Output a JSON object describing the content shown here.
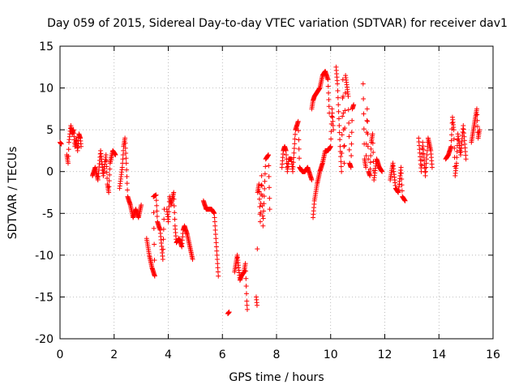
{
  "chart_data": {
    "type": "scatter",
    "title": "Day 059 of 2015, Sidereal Day-to-day VTEC variation (SDTVAR) for receiver dav1",
    "xlabel": "GPS time / hours",
    "ylabel": "SDTVAR / TECUs",
    "xlim": [
      0,
      16
    ],
    "ylim": [
      -20,
      15
    ],
    "xticks": [
      0,
      2,
      4,
      6,
      8,
      10,
      12,
      14,
      16
    ],
    "yticks": [
      -20,
      -15,
      -10,
      -5,
      0,
      5,
      10,
      15
    ],
    "grid": true,
    "marker": "+",
    "color": "#ff0000",
    "segments": [
      [
        [
          0.0,
          3.5
        ],
        [
          0.05,
          3.3
        ]
      ],
      [
        [
          0.25,
          2.0
        ],
        [
          0.3,
          1.0
        ],
        [
          0.33,
          3.5
        ],
        [
          0.4,
          5.5
        ],
        [
          0.45,
          4.5
        ],
        [
          0.5,
          5.0
        ],
        [
          0.55,
          3.0
        ],
        [
          0.6,
          4.0
        ],
        [
          0.65,
          2.5
        ],
        [
          0.7,
          4.5
        ],
        [
          0.75,
          4.0
        ],
        [
          0.78,
          3.0
        ]
      ],
      [
        [
          1.2,
          -0.5
        ],
        [
          1.3,
          0.5
        ],
        [
          1.4,
          -1.0
        ],
        [
          1.5,
          2.5
        ],
        [
          1.6,
          -0.5
        ],
        [
          1.7,
          2.0
        ],
        [
          1.75,
          -1.5
        ],
        [
          1.8,
          -2.5
        ],
        [
          1.85,
          1.0
        ],
        [
          1.95,
          2.5
        ],
        [
          2.05,
          2.0
        ]
      ],
      [
        [
          2.2,
          -2.0
        ],
        [
          2.3,
          0.5
        ],
        [
          2.35,
          3.0
        ],
        [
          2.4,
          4.0
        ],
        [
          2.45,
          1.0
        ],
        [
          2.5,
          -3.0
        ],
        [
          2.6,
          -4.0
        ],
        [
          2.7,
          -5.5
        ],
        [
          2.8,
          -4.5
        ],
        [
          2.9,
          -5.5
        ],
        [
          3.0,
          -4.0
        ]
      ],
      [
        [
          3.2,
          -8.0
        ],
        [
          3.3,
          -10.0
        ],
        [
          3.4,
          -11.5
        ],
        [
          3.5,
          -12.5
        ],
        [
          3.45,
          -3.0
        ],
        [
          3.55,
          -2.8
        ],
        [
          3.6,
          -6.0
        ],
        [
          3.7,
          -7.0
        ],
        [
          3.8,
          -10.5
        ],
        [
          3.85,
          -4.5
        ]
      ],
      [
        [
          3.95,
          -4.5
        ],
        [
          4.0,
          -6.0
        ],
        [
          4.05,
          -3.0
        ],
        [
          4.1,
          -4.0
        ],
        [
          4.2,
          -2.5
        ],
        [
          4.25,
          -6.5
        ],
        [
          4.3,
          -8.5
        ],
        [
          4.4,
          -8.0
        ],
        [
          4.5,
          -9.0
        ],
        [
          4.55,
          -7.0
        ],
        [
          4.6,
          -6.5
        ],
        [
          4.7,
          -7.5
        ],
        [
          4.8,
          -9.0
        ],
        [
          4.9,
          -10.5
        ]
      ],
      [
        [
          5.3,
          -3.5
        ],
        [
          5.4,
          -4.5
        ],
        [
          5.5,
          -4.5
        ],
        [
          5.6,
          -4.5
        ],
        [
          5.7,
          -5.0
        ],
        [
          5.75,
          -7.5
        ],
        [
          5.8,
          -10.0
        ],
        [
          5.85,
          -12.5
        ]
      ],
      [
        [
          6.2,
          -17.0
        ],
        [
          6.25,
          -16.8
        ]
      ],
      [
        [
          6.45,
          -12.0
        ],
        [
          6.5,
          -11.0
        ],
        [
          6.55,
          -10.0
        ],
        [
          6.6,
          -11.5
        ],
        [
          6.65,
          -13.0
        ],
        [
          6.7,
          -12.5
        ],
        [
          6.8,
          -12.0
        ],
        [
          6.85,
          -11.0
        ],
        [
          6.9,
          -15.5
        ],
        [
          6.92,
          -16.5
        ]
      ],
      [
        [
          7.25,
          -15.0
        ],
        [
          7.28,
          -16.0
        ],
        [
          7.3,
          -2.5
        ],
        [
          7.35,
          -1.5
        ],
        [
          7.4,
          -6.0
        ],
        [
          7.45,
          -0.5
        ],
        [
          7.5,
          -6.5
        ],
        [
          7.6,
          1.5
        ],
        [
          7.7,
          2.0
        ],
        [
          7.75,
          -4.5
        ]
      ],
      [
        [
          8.2,
          0.5
        ],
        [
          8.25,
          2.5
        ],
        [
          8.3,
          3.0
        ],
        [
          8.35,
          2.5
        ],
        [
          8.4,
          0.0
        ],
        [
          8.45,
          1.5
        ],
        [
          8.55,
          1.5
        ],
        [
          8.6,
          0.0
        ],
        [
          8.7,
          5.0
        ],
        [
          8.8,
          6.0
        ],
        [
          8.85,
          0.5
        ],
        [
          8.95,
          0.0
        ],
        [
          9.05,
          0.0
        ],
        [
          9.15,
          0.5
        ],
        [
          9.3,
          -1.0
        ]
      ],
      [
        [
          9.3,
          7.5
        ],
        [
          9.35,
          8.5
        ],
        [
          9.4,
          9.0
        ],
        [
          9.5,
          9.5
        ],
        [
          9.6,
          10.0
        ],
        [
          9.7,
          11.5
        ],
        [
          9.8,
          12.0
        ],
        [
          9.9,
          11.0
        ],
        [
          9.95,
          7.0
        ]
      ],
      [
        [
          9.35,
          -5.5
        ],
        [
          9.4,
          -3.5
        ],
        [
          9.5,
          -1.5
        ],
        [
          9.6,
          0.0
        ],
        [
          9.7,
          1.0
        ],
        [
          9.8,
          2.5
        ],
        [
          9.9,
          2.5
        ],
        [
          10.0,
          3.0
        ],
        [
          10.05,
          7.5
        ],
        [
          10.1,
          5.0
        ]
      ],
      [
        [
          10.2,
          12.5
        ],
        [
          10.25,
          10.5
        ],
        [
          10.35,
          3.0
        ],
        [
          10.4,
          0.0
        ],
        [
          10.45,
          11.0
        ],
        [
          10.5,
          1.0
        ],
        [
          10.55,
          11.5
        ],
        [
          10.65,
          9.0
        ],
        [
          10.7,
          1.0
        ],
        [
          10.75,
          0.5
        ],
        [
          10.8,
          7.5
        ],
        [
          10.85,
          8.0
        ]
      ],
      [
        [
          11.2,
          10.5
        ],
        [
          11.25,
          1.5
        ],
        [
          11.3,
          0.5
        ],
        [
          11.35,
          7.5
        ],
        [
          11.4,
          0.0
        ],
        [
          11.45,
          -0.5
        ],
        [
          11.5,
          3.5
        ],
        [
          11.55,
          4.5
        ],
        [
          11.6,
          -1.0
        ],
        [
          11.7,
          1.5
        ],
        [
          11.8,
          0.5
        ],
        [
          11.9,
          0.0
        ]
      ],
      [
        [
          12.2,
          -1.0
        ],
        [
          12.3,
          1.0
        ],
        [
          12.4,
          -2.0
        ],
        [
          12.5,
          -2.5
        ],
        [
          12.6,
          0.5
        ],
        [
          12.65,
          -3.0
        ],
        [
          12.75,
          -3.5
        ]
      ],
      [
        [
          13.25,
          4.0
        ],
        [
          13.35,
          0.0
        ],
        [
          13.4,
          3.5
        ],
        [
          13.5,
          -0.5
        ],
        [
          13.6,
          4.0
        ],
        [
          13.7,
          2.5
        ],
        [
          13.75,
          0.5
        ]
      ],
      [
        [
          14.25,
          1.5
        ],
        [
          14.35,
          2.0
        ],
        [
          14.45,
          3.0
        ],
        [
          14.5,
          6.5
        ],
        [
          14.55,
          5.0
        ],
        [
          14.6,
          -0.5
        ],
        [
          14.65,
          1.0
        ],
        [
          14.7,
          4.5
        ],
        [
          14.8,
          2.0
        ],
        [
          14.9,
          5.5
        ],
        [
          15.0,
          1.5
        ]
      ],
      [
        [
          15.2,
          3.5
        ],
        [
          15.25,
          4.5
        ],
        [
          15.3,
          5.5
        ],
        [
          15.35,
          6.5
        ],
        [
          15.4,
          7.5
        ],
        [
          15.45,
          4.0
        ],
        [
          15.5,
          5.0
        ]
      ]
    ]
  }
}
